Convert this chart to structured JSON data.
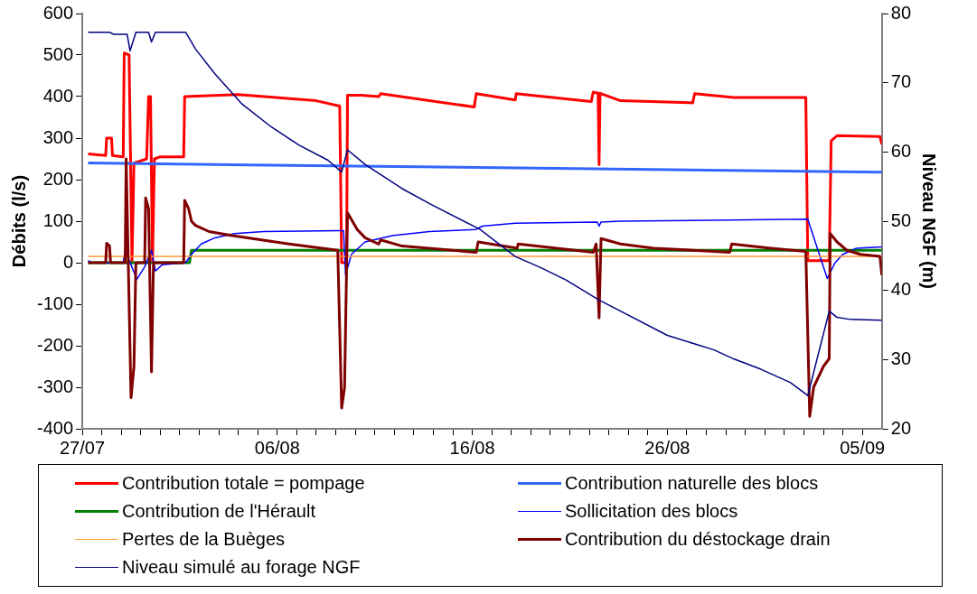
{
  "chart_data": {
    "type": "line",
    "ylabel": "Débits (l/s)",
    "y2label": "Niveau NGF (m)",
    "xlim": [
      "--07-27",
      "--09-06"
    ],
    "xticks": [
      {
        "value": "--07-27",
        "label": "27/07"
      },
      {
        "value": "--07-28",
        "label": null
      },
      {
        "value": "--07-29",
        "label": null
      },
      {
        "value": "--07-30",
        "label": null
      },
      {
        "value": "--07-31",
        "label": null
      },
      {
        "value": "--08-01",
        "label": null
      },
      {
        "value": "--08-02",
        "label": null
      },
      {
        "value": "--08-03",
        "label": null
      },
      {
        "value": "--08-04",
        "label": null
      },
      {
        "value": "--08-05",
        "label": null
      },
      {
        "value": "--08-06",
        "label": "06/08"
      },
      {
        "value": "--08-07",
        "label": null
      },
      {
        "value": "--08-08",
        "label": null
      },
      {
        "value": "--08-09",
        "label": null
      },
      {
        "value": "--08-10",
        "label": null
      },
      {
        "value": "--08-11",
        "label": null
      },
      {
        "value": "--08-12",
        "label": null
      },
      {
        "value": "--08-13",
        "label": null
      },
      {
        "value": "--08-14",
        "label": null
      },
      {
        "value": "--08-15",
        "label": null
      },
      {
        "value": "--08-16",
        "label": "16/08"
      },
      {
        "value": "--08-17",
        "label": null
      },
      {
        "value": "--08-18",
        "label": null
      },
      {
        "value": "--08-19",
        "label": null
      },
      {
        "value": "--08-20",
        "label": null
      },
      {
        "value": "--08-21",
        "label": null
      },
      {
        "value": "--08-22",
        "label": null
      },
      {
        "value": "--08-23",
        "label": null
      },
      {
        "value": "--08-24",
        "label": null
      },
      {
        "value": "--08-25",
        "label": null
      },
      {
        "value": "--08-26",
        "label": "26/08"
      },
      {
        "value": "--08-27",
        "label": null
      },
      {
        "value": "--08-28",
        "label": null
      },
      {
        "value": "--08-29",
        "label": null
      },
      {
        "value": "--08-30",
        "label": null
      },
      {
        "value": "--08-31",
        "label": null
      },
      {
        "value": "--09-01",
        "label": null
      },
      {
        "value": "--09-02",
        "label": null
      },
      {
        "value": "--09-03",
        "label": null
      },
      {
        "value": "--09-04",
        "label": null
      },
      {
        "value": "--09-05",
        "label": "05/09"
      }
    ],
    "ylim": [
      -400,
      600
    ],
    "yticks": [
      -400,
      -300,
      -200,
      -100,
      0,
      100,
      200,
      300,
      400,
      500,
      600
    ],
    "y2lim": [
      20,
      80
    ],
    "y2ticks": [
      20,
      30,
      40,
      50,
      60,
      70,
      80
    ],
    "legend": "bottom",
    "series": [
      {
        "name": "Contribution totale = pompage",
        "color": "#ff0000",
        "x": [
          "--07-27T07:12",
          "--07-28T04:48",
          "--07-28T06:00",
          "--07-28T12:00",
          "--07-28T13:12",
          "--07-29T02:24",
          "--07-29T03:36",
          "--07-29T09:36",
          "--07-29T13:12",
          "--07-29T15:36",
          "--07-30T07:12",
          "--07-30T09:36",
          "--07-30T12:00",
          "--07-30T14:24",
          "--07-30T16:48",
          "--07-31",
          "--08-01T04:48",
          "--08-01T06:00",
          "--08-04",
          "--08-08",
          "--08-09T04:48",
          "--08-09T07:12",
          "--08-09T13:12",
          "--08-09T14:24",
          "--08-10T07:12",
          "--08-11T04:48",
          "--08-11T07:12",
          "--08-16T02:24",
          "--08-16T04:48",
          "--08-18T04:48",
          "--08-18T06:00",
          "--08-22T02:24",
          "--08-22T04:48",
          "--08-22T10:48",
          "--08-22T12:00",
          "--08-22T13:12",
          "--08-23T14:24",
          "--08-27T07:12",
          "--08-27T09:36",
          "--08-29T09:36",
          "--09-02T02:24",
          "--09-02T04:48",
          "--09-03T07:12",
          "--09-03T09:36",
          "--09-03T16:48",
          "--09-05T21:36",
          "--09-06"
        ],
        "values": [
          262,
          258,
          300,
          300,
          258,
          255,
          505,
          500,
          0,
          240,
          250,
          400,
          400,
          0,
          250,
          255,
          255,
          400,
          405,
          390,
          377,
          0,
          0,
          403,
          403,
          400,
          407,
          375,
          407,
          392,
          407,
          388,
          411,
          408,
          236,
          408,
          390,
          385,
          407,
          398,
          398,
          5,
          5,
          293,
          306,
          304,
          285
        ]
      },
      {
        "name": "Contribution naturelle des blocs",
        "color": "#3366ff",
        "x": [
          "--07-27T07:12",
          "--09-06"
        ],
        "values": [
          240,
          218
        ]
      },
      {
        "name": "Contribution de l'Hérault",
        "color": "#008000",
        "x": [
          "--07-27T07:12",
          "--08-01T12:00",
          "--08-01T14:24",
          "--09-06"
        ],
        "values": [
          0,
          0,
          30,
          30
        ]
      },
      {
        "name": "Sollicitation des blocs",
        "color": "#0000ff",
        "x": [
          "--07-27T07:12",
          "--07-27T12:00",
          "--07-29T02:24",
          "--07-29T04:48",
          "--07-29T19:12",
          "--07-30T04:48",
          "--07-30T13:12",
          "--07-30T18:00",
          "--07-31T02:24",
          "--08-01T07:12",
          "--08-01T14:24",
          "--08-02T02:24",
          "--08-02T19:12",
          "--08-03T19:12",
          "--08-05T07:12",
          "--08-09T04:48",
          "--08-09T09:36",
          "--08-09T12:00",
          "--08-09T19:12",
          "--08-10T12:00",
          "--08-11T21:36",
          "--08-13T19:12",
          "--08-16T04:48",
          "--08-16T12:00",
          "--08-18T04:48",
          "--08-22T09:36",
          "--08-22T12:00",
          "--08-22T14:24",
          "--08-23T14:24",
          "--08-28T04:48",
          "--09-02T04:48",
          "--09-03T04:48",
          "--09-03T14:24",
          "--09-04",
          "--09-04T16:48",
          "--09-06"
        ],
        "values": [
          5,
          0,
          0,
          30,
          -40,
          -10,
          30,
          -20,
          -5,
          0,
          20,
          45,
          60,
          70,
          75,
          77,
          77,
          -30,
          20,
          50,
          65,
          75,
          80,
          88,
          95,
          98,
          88,
          98,
          100,
          102,
          105,
          -38,
          0,
          20,
          35,
          38
        ]
      },
      {
        "name": "Pertes de la Buèges",
        "color": "#ff9933",
        "x": [
          "--07-27T07:12",
          "--09-06"
        ],
        "values": [
          15,
          15
        ]
      },
      {
        "name": "Contribution du déstockage drain",
        "color": "#800000",
        "x": [
          "--07-27T07:12",
          "--07-28T04:48",
          "--07-28T06:00",
          "--07-28T09:36",
          "--07-28T10:48",
          "--07-29T04:48",
          "--07-29T06:00",
          "--07-29T12:00",
          "--07-29T15:36",
          "--07-29T18:00",
          "--07-30T04:48",
          "--07-30T06:00",
          "--07-30T09:36",
          "--07-30T13:12",
          "--07-30T15:36",
          "--08-01T04:48",
          "--08-01T06:00",
          "--08-01T10:48",
          "--08-01T14:24",
          "--08-01T19:12",
          "--08-02T12:00",
          "--08-03T16:48",
          "--08-06T14:24",
          "--08-08T07:12",
          "--08-09T02:24",
          "--08-09T07:12",
          "--08-09T10:48",
          "--08-09T14:24",
          "--08-10T02:24",
          "--08-10T12:00",
          "--08-11T04:48",
          "--08-11T07:12",
          "--08-12T09:36",
          "--08-16T04:48",
          "--08-16T07:12",
          "--08-18T07:12",
          "--08-18T08:24",
          "--08-22T04:48",
          "--08-22T08:24",
          "--08-22T12:00",
          "--08-22T14:24",
          "--08-23T14:24",
          "--08-25T07:12",
          "--08-29T04:48",
          "--08-29T07:12",
          "--08-31T07:12",
          "--09-02T02:24",
          "--09-02T07:12",
          "--09-02T12:00",
          "--09-03",
          "--09-03T07:12",
          "--09-03T08:24",
          "--09-03T16:48",
          "--09-04T04:48",
          "--09-04T21:36",
          "--09-05T21:36",
          "--09-06"
        ],
        "values": [
          0,
          0,
          47,
          40,
          0,
          0,
          250,
          -325,
          -250,
          0,
          0,
          156,
          130,
          -263,
          0,
          0,
          150,
          130,
          100,
          90,
          75,
          65,
          45,
          35,
          30,
          -350,
          -300,
          120,
          80,
          60,
          45,
          55,
          40,
          25,
          50,
          35,
          45,
          25,
          45,
          -133,
          58,
          45,
          35,
          25,
          45,
          35,
          27,
          -370,
          -300,
          -250,
          -231,
          70,
          50,
          30,
          20,
          15,
          -30
        ]
      },
      {
        "name": "Niveau simulé au forage NGF",
        "color": "#000080",
        "axis": "y2",
        "x": [
          "--07-27T07:12",
          "--07-28T09:36",
          "--07-28T14:24",
          "--07-29T07:12",
          "--07-29T10:48",
          "--07-29T18:00",
          "--07-30T09:36",
          "--07-30T13:12",
          "--07-30T18:00",
          "--08-01T07:12",
          "--08-01T19:12",
          "--08-02T19:12",
          "--08-04T04:48",
          "--08-05T16:48",
          "--08-07T02:24",
          "--08-08T14:24",
          "--08-09T07:12",
          "--08-09T14:24",
          "--08-10T12:00",
          "--08-12T09:36",
          "--08-13T21:36",
          "--08-16T09:36",
          "--08-18T04:48",
          "--08-19T12:00",
          "--08-20T19:12",
          "--08-22T12:00",
          "--08-23T14:24",
          "--08-26",
          "--08-28T09:36",
          "--08-29T09:36",
          "--08-30T19:12",
          "--09-01T07:12",
          "--09-02T04:48",
          "--09-03T07:12",
          "--09-03T16:48",
          "--09-04T09:36",
          "--09-06"
        ],
        "values": [
          77.3,
          77.3,
          77,
          77,
          74.6,
          77.3,
          77.3,
          75.9,
          77.3,
          77.3,
          74.9,
          71.3,
          66.9,
          63.6,
          61,
          58.8,
          57.1,
          60.3,
          58.2,
          54.7,
          52.4,
          48.8,
          44.9,
          43.3,
          41.5,
          38.6,
          37,
          33.5,
          31.4,
          30.1,
          28.6,
          26.7,
          24.8,
          37,
          36.1,
          35.8,
          35.7
        ]
      }
    ]
  }
}
